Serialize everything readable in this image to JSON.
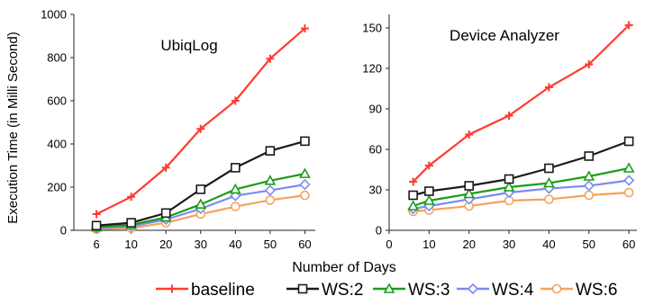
{
  "figure": {
    "ylabel": "Execution Time (in Milli Second)",
    "xlabel": "Number of Days"
  },
  "legend": [
    {
      "name": "baseline",
      "color": "#ff3b30",
      "marker": "plus"
    },
    {
      "name": "WS:2",
      "color": "#1a1a1a",
      "marker": "square"
    },
    {
      "name": "WS:3",
      "color": "#1a9e1a",
      "marker": "triangle"
    },
    {
      "name": "WS:4",
      "color": "#7b8cf0",
      "marker": "diamond"
    },
    {
      "name": "WS:6",
      "color": "#f5a25d",
      "marker": "circle"
    }
  ],
  "chart_data": [
    {
      "type": "line",
      "title": "UbiqLog",
      "ylabel": "Execution Time (in Milli Second)",
      "xlabel": "",
      "x_tick_labels": [
        "6",
        "10",
        "20",
        "30",
        "40",
        "50",
        "60"
      ],
      "ylim": [
        0,
        1000
      ],
      "y_ticks": [
        0,
        200,
        400,
        600,
        800,
        1000
      ],
      "x": [
        6,
        10,
        20,
        30,
        40,
        50,
        60
      ],
      "series": [
        {
          "name": "baseline",
          "values": [
            75,
            155,
            290,
            470,
            600,
            795,
            935
          ]
        },
        {
          "name": "WS:2",
          "values": [
            22,
            35,
            80,
            190,
            290,
            368,
            413
          ]
        },
        {
          "name": "WS:3",
          "values": [
            15,
            25,
            60,
            120,
            190,
            230,
            262
          ]
        },
        {
          "name": "WS:4",
          "values": [
            10,
            18,
            50,
            100,
            160,
            185,
            212
          ]
        },
        {
          "name": "WS:6",
          "values": [
            5,
            10,
            35,
            75,
            110,
            140,
            162
          ]
        }
      ]
    },
    {
      "type": "line",
      "title": "Device Analyzer",
      "ylabel": "",
      "xlabel": "",
      "x_tick_labels": [
        "0",
        "10",
        "20",
        "30",
        "40",
        "50",
        "60"
      ],
      "xlim": [
        0,
        62
      ],
      "ylim": [
        0,
        160
      ],
      "y_ticks": [
        0,
        30,
        60,
        90,
        120,
        150
      ],
      "x": [
        6,
        10,
        20,
        30,
        40,
        50,
        60
      ],
      "series": [
        {
          "name": "baseline",
          "values": [
            36,
            48,
            71,
            85,
            106,
            123,
            152
          ]
        },
        {
          "name": "WS:2",
          "values": [
            26,
            29,
            33,
            38,
            46,
            55,
            66
          ]
        },
        {
          "name": "WS:3",
          "values": [
            18,
            22,
            27,
            32,
            35,
            40,
            46
          ]
        },
        {
          "name": "WS:4",
          "values": [
            16,
            18,
            23,
            28,
            31,
            33,
            37
          ]
        },
        {
          "name": "WS:6",
          "values": [
            14,
            15,
            18,
            22,
            23,
            26,
            28
          ]
        }
      ]
    }
  ]
}
